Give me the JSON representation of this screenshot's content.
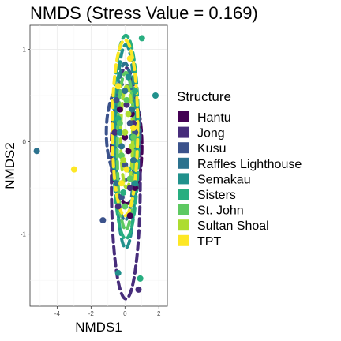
{
  "chart_data": {
    "type": "scatter",
    "title": "NMDS (Stress Value = 0.169)",
    "xlabel": "NMDS1",
    "ylabel": "NMDS2",
    "xlim": [
      -5.6,
      2.5
    ],
    "ylim": [
      -1.78,
      1.26
    ],
    "x_ticks": [
      -4,
      -2,
      0,
      2
    ],
    "y_ticks": [
      -1,
      0,
      1
    ],
    "grid": true,
    "legend": {
      "title": "Structure",
      "placement": "right"
    },
    "series": [
      {
        "name": "Hantu",
        "color": "#440154",
        "points": [
          [
            0.4,
            0.3
          ],
          [
            0.2,
            -0.1
          ],
          [
            -0.3,
            0.35
          ],
          [
            0.6,
            -0.5
          ],
          [
            0.3,
            -0.8
          ],
          [
            0.0,
            0.05
          ]
        ],
        "ellipse": {
          "cx": 0.1,
          "cy": -0.05,
          "rx": 0.9,
          "ry": 0.62,
          "angle": 0
        }
      },
      {
        "name": "Jong",
        "color": "#472d7b",
        "points": [
          [
            0.8,
            -1.6
          ],
          [
            -0.4,
            -0.7
          ],
          [
            0.5,
            0.2
          ],
          [
            -0.6,
            0.1
          ],
          [
            0.3,
            -0.5
          ],
          [
            0.1,
            0.4
          ]
        ],
        "ellipse": {
          "cx": 0.05,
          "cy": -0.45,
          "rx": 0.85,
          "ry": 1.25,
          "angle": 0
        }
      },
      {
        "name": "Kusu",
        "color": "#3b528b",
        "points": [
          [
            -1.3,
            -0.85
          ],
          [
            0.3,
            0.2
          ],
          [
            -0.5,
            0.45
          ],
          [
            0.0,
            -0.25
          ],
          [
            0.6,
            0.1
          ],
          [
            -0.2,
            -0.6
          ]
        ],
        "ellipse": {
          "cx": -0.1,
          "cy": 0.1,
          "rx": 1.0,
          "ry": 0.52,
          "angle": 0
        }
      },
      {
        "name": "Raffles Lighthouse",
        "color": "#2c728e",
        "points": [
          [
            -5.2,
            -0.1
          ],
          [
            -0.5,
            -0.45
          ],
          [
            0.5,
            -0.2
          ],
          [
            0.0,
            0.55
          ],
          [
            -0.2,
            -0.05
          ],
          [
            0.4,
            0.35
          ]
        ],
        "ellipse": {
          "cx": 0.0,
          "cy": 0.0,
          "rx": 0.55,
          "ry": 0.85,
          "angle": 0
        }
      },
      {
        "name": "Semakau",
        "color": "#21918c",
        "points": [
          [
            -0.4,
            -1.42
          ],
          [
            0.4,
            0.05
          ],
          [
            1.8,
            0.5
          ],
          [
            -0.3,
            0.1
          ],
          [
            0.6,
            -0.45
          ],
          [
            0.2,
            0.7
          ]
        ],
        "ellipse": {
          "cx": 0.05,
          "cy": -0.05,
          "rx": 0.6,
          "ry": 1.1,
          "angle": 0
        }
      },
      {
        "name": "Sisters",
        "color": "#28ae80",
        "points": [
          [
            1.0,
            1.12
          ],
          [
            0.9,
            -1.48
          ],
          [
            -0.4,
            0.25
          ],
          [
            0.2,
            -0.3
          ],
          [
            0.6,
            0.55
          ],
          [
            -0.1,
            -0.55
          ]
        ],
        "ellipse": {
          "cx": 0.05,
          "cy": 0.05,
          "rx": 0.75,
          "ry": 1.1,
          "angle": 0
        }
      },
      {
        "name": "St. John",
        "color": "#5ec962",
        "points": [
          [
            0.1,
            0.45
          ],
          [
            -0.2,
            -0.15
          ],
          [
            0.5,
            0.05
          ],
          [
            0.3,
            -0.4
          ],
          [
            -0.3,
            0.2
          ],
          [
            0.0,
            -0.7
          ]
        ],
        "ellipse": {
          "cx": 0.05,
          "cy": -0.1,
          "rx": 0.5,
          "ry": 0.85,
          "angle": 0
        }
      },
      {
        "name": "Sultan Shoal",
        "color": "#addc30",
        "points": [
          [
            0.2,
            0.3
          ],
          [
            -0.1,
            -0.2
          ],
          [
            0.4,
            -0.05
          ],
          [
            0.0,
            0.1
          ]
        ],
        "ellipse": {
          "cx": 0.1,
          "cy": 0.05,
          "rx": 0.35,
          "ry": 0.55,
          "angle": 0
        }
      },
      {
        "name": "TPT",
        "color": "#fde725",
        "points": [
          [
            -3.0,
            -0.3
          ],
          [
            0.3,
            0.9
          ],
          [
            -0.2,
            -0.45
          ],
          [
            0.5,
            0.15
          ],
          [
            0.1,
            -0.3
          ],
          [
            -0.4,
            0.6
          ]
        ],
        "ellipse": {
          "cx": 0.0,
          "cy": 0.15,
          "rx": 0.75,
          "ry": 0.95,
          "angle": 0
        }
      }
    ]
  }
}
